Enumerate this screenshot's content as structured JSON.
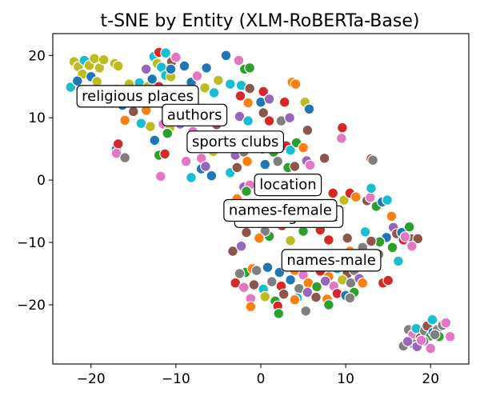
{
  "chart_data": {
    "type": "scatter",
    "title": "t-SNE by Entity (XLM-RoBERTa-Base)",
    "xlabel": "",
    "ylabel": "",
    "xlim": [
      -24.5,
      24.5
    ],
    "ylim": [
      -29.5,
      23.5
    ],
    "x_ticks": [
      -20,
      -10,
      0,
      10,
      20
    ],
    "y_ticks": [
      20,
      10,
      0,
      -10,
      -20
    ],
    "grid": false,
    "legend": "none",
    "colors": [
      "#1f77b4",
      "#ff7f0e",
      "#2ca02c",
      "#d62728",
      "#9467bd",
      "#8c564b",
      "#e377c2",
      "#7f7f7f",
      "#bcbd22",
      "#17becf"
    ],
    "cluster_labels": [
      {
        "text": "religious places",
        "x": -14.5,
        "y": 13.5
      },
      {
        "text": "authors",
        "x": -7.8,
        "y": 10.5
      },
      {
        "text": "sports clubs",
        "x": -3.0,
        "y": 6.2
      },
      {
        "text": "location",
        "x": 3.2,
        "y": -0.7
      },
      {
        "text": "clothing-male",
        "x": 3.3,
        "y": -5.8
      },
      {
        "text": "names-female",
        "x": 2.3,
        "y": -4.8
      },
      {
        "text": "names-male",
        "x": 8.3,
        "y": -12.8
      }
    ],
    "points": [
      {
        "x": -22.0,
        "y": 19.0,
        "c": 8
      },
      {
        "x": -21.5,
        "y": 18.2,
        "c": 8
      },
      {
        "x": -20.8,
        "y": 19.2,
        "c": 9
      },
      {
        "x": -20.2,
        "y": 18.4,
        "c": 8
      },
      {
        "x": -19.6,
        "y": 19.5,
        "c": 8
      },
      {
        "x": -19.0,
        "y": 18.0,
        "c": 8
      },
      {
        "x": -18.5,
        "y": 19.3,
        "c": 8
      },
      {
        "x": -17.2,
        "y": 18.7,
        "c": 8
      },
      {
        "x": -16.8,
        "y": 18.3,
        "c": 8
      },
      {
        "x": -21.0,
        "y": 17.0,
        "c": 8
      },
      {
        "x": -20.0,
        "y": 16.6,
        "c": 0
      },
      {
        "x": -22.4,
        "y": 14.9,
        "c": 9
      },
      {
        "x": -21.6,
        "y": 15.9,
        "c": 0
      },
      {
        "x": -19.3,
        "y": 15.8,
        "c": 8
      },
      {
        "x": -17.0,
        "y": 14.6,
        "c": 6
      },
      {
        "x": -15.5,
        "y": 15.4,
        "c": 8
      },
      {
        "x": -14.3,
        "y": 15.6,
        "c": 9
      },
      {
        "x": -13.3,
        "y": 15.0,
        "c": 8
      },
      {
        "x": -13.5,
        "y": 17.8,
        "c": 4
      },
      {
        "x": -12.6,
        "y": 19.8,
        "c": 9
      },
      {
        "x": -12.0,
        "y": 20.5,
        "c": 3
      },
      {
        "x": -11.2,
        "y": 20.4,
        "c": 9
      },
      {
        "x": -10.5,
        "y": 19.0,
        "c": 5
      },
      {
        "x": -10.0,
        "y": 19.7,
        "c": 6
      },
      {
        "x": -12.2,
        "y": 18.7,
        "c": 8
      },
      {
        "x": -11.7,
        "y": 18.1,
        "c": 9
      },
      {
        "x": -11.2,
        "y": 16.8,
        "c": 9
      },
      {
        "x": -10.6,
        "y": 16.6,
        "c": 8
      },
      {
        "x": -12.8,
        "y": 16.2,
        "c": 0
      },
      {
        "x": -13.0,
        "y": 14.0,
        "c": 2
      },
      {
        "x": -12.0,
        "y": 15.0,
        "c": 3
      },
      {
        "x": -10.6,
        "y": 17.8,
        "c": 0
      },
      {
        "x": -9.0,
        "y": 18.3,
        "c": 0
      },
      {
        "x": -8.2,
        "y": 15.7,
        "c": 0
      },
      {
        "x": -7.5,
        "y": 16.7,
        "c": 6
      },
      {
        "x": -6.4,
        "y": 18.0,
        "c": 0
      },
      {
        "x": -5.0,
        "y": 16.0,
        "c": 8
      },
      {
        "x": -4.1,
        "y": 20.0,
        "c": 0
      },
      {
        "x": -2.6,
        "y": 19.2,
        "c": 6
      },
      {
        "x": -1.9,
        "y": 17.8,
        "c": 2
      },
      {
        "x": -1.3,
        "y": 18.0,
        "c": 2
      },
      {
        "x": -3.6,
        "y": 15.4,
        "c": 9
      },
      {
        "x": -2.3,
        "y": 15.2,
        "c": 9
      },
      {
        "x": -2.4,
        "y": 13.5,
        "c": 3
      },
      {
        "x": -1.3,
        "y": 14.7,
        "c": 5
      },
      {
        "x": 0.3,
        "y": 14.2,
        "c": 3
      },
      {
        "x": -1.5,
        "y": 12.4,
        "c": 1
      },
      {
        "x": 0.0,
        "y": 12.5,
        "c": 0
      },
      {
        "x": -5.5,
        "y": 14.0,
        "c": 9
      },
      {
        "x": -6.6,
        "y": 14.8,
        "c": 8
      },
      {
        "x": 1.0,
        "y": 13.0,
        "c": 4
      },
      {
        "x": 2.8,
        "y": 12.5,
        "c": 3
      },
      {
        "x": 3.7,
        "y": 15.7,
        "c": 1
      },
      {
        "x": 4.1,
        "y": 15.4,
        "c": 1
      },
      {
        "x": 5.2,
        "y": 12.5,
        "c": 8
      },
      {
        "x": 5.7,
        "y": 11.4,
        "c": 0
      },
      {
        "x": 0.3,
        "y": 10.8,
        "c": 5
      },
      {
        "x": -2.5,
        "y": 10.2,
        "c": 4
      },
      {
        "x": -1.5,
        "y": 9.5,
        "c": 9
      },
      {
        "x": 1.0,
        "y": 9.5,
        "c": 3
      },
      {
        "x": 2.4,
        "y": 9.5,
        "c": 7
      },
      {
        "x": 3.4,
        "y": 10.0,
        "c": 4
      },
      {
        "x": 5.5,
        "y": 8.0,
        "c": 5
      },
      {
        "x": 9.6,
        "y": 8.4,
        "c": 3
      },
      {
        "x": 9.5,
        "y": 6.7,
        "c": 6
      },
      {
        "x": -15.2,
        "y": 13.5,
        "c": 2
      },
      {
        "x": -16.3,
        "y": 12.0,
        "c": 0
      },
      {
        "x": -15.0,
        "y": 11.0,
        "c": 5
      },
      {
        "x": -16.0,
        "y": 9.6,
        "c": 1
      },
      {
        "x": -13.5,
        "y": 11.2,
        "c": 1
      },
      {
        "x": -14.1,
        "y": 9.1,
        "c": 9
      },
      {
        "x": -13.0,
        "y": 8.6,
        "c": 8
      },
      {
        "x": -11.5,
        "y": 9.0,
        "c": 6
      },
      {
        "x": -10.7,
        "y": 8.4,
        "c": 8
      },
      {
        "x": -9.5,
        "y": 9.0,
        "c": 4
      },
      {
        "x": -12.5,
        "y": 6.4,
        "c": 0
      },
      {
        "x": -11.0,
        "y": 7.5,
        "c": 2
      },
      {
        "x": -8.0,
        "y": 7.8,
        "c": 6
      },
      {
        "x": -5.2,
        "y": 8.9,
        "c": 5
      },
      {
        "x": -17.0,
        "y": 5.0,
        "c": 0
      },
      {
        "x": -16.8,
        "y": 5.8,
        "c": 3
      },
      {
        "x": -17.0,
        "y": 4.3,
        "c": 6
      },
      {
        "x": -16.0,
        "y": 3.6,
        "c": 7
      },
      {
        "x": -12.0,
        "y": 4.0,
        "c": 2
      },
      {
        "x": -11.3,
        "y": 4.2,
        "c": 3
      },
      {
        "x": -8.8,
        "y": 3.0,
        "c": 6
      },
      {
        "x": -7.0,
        "y": 3.5,
        "c": 6
      },
      {
        "x": -5.6,
        "y": 4.6,
        "c": 8
      },
      {
        "x": -4.5,
        "y": 6.5,
        "c": 5
      },
      {
        "x": -3.0,
        "y": 4.0,
        "c": 4
      },
      {
        "x": -2.0,
        "y": 4.5,
        "c": 7
      },
      {
        "x": -1.0,
        "y": 5.5,
        "c": 3
      },
      {
        "x": 0.2,
        "y": 5.0,
        "c": 3
      },
      {
        "x": 1.5,
        "y": 4.5,
        "c": 2
      },
      {
        "x": 3.0,
        "y": 5.5,
        "c": 3
      },
      {
        "x": 3.5,
        "y": 4.8,
        "c": 9
      },
      {
        "x": 4.2,
        "y": 6.0,
        "c": 2
      },
      {
        "x": 5.0,
        "y": 5.2,
        "c": 1
      },
      {
        "x": 5.4,
        "y": 3.1,
        "c": 4
      },
      {
        "x": 5.8,
        "y": 2.4,
        "c": 6
      },
      {
        "x": 7.5,
        "y": 3.5,
        "c": 5
      },
      {
        "x": -8.2,
        "y": 0.4,
        "c": 9
      },
      {
        "x": -7.0,
        "y": 1.8,
        "c": 0
      },
      {
        "x": -6.5,
        "y": 2.2,
        "c": 4
      },
      {
        "x": -5.8,
        "y": 0.7,
        "c": 0
      },
      {
        "x": -11.8,
        "y": 0.6,
        "c": 6
      },
      {
        "x": -3.6,
        "y": 1.2,
        "c": 9
      },
      {
        "x": -2.8,
        "y": 2.0,
        "c": 5
      },
      {
        "x": -1.6,
        "y": 3.0,
        "c": 1
      },
      {
        "x": 0.5,
        "y": 2.5,
        "c": 0
      },
      {
        "x": 2.0,
        "y": 3.0,
        "c": 7
      },
      {
        "x": 3.2,
        "y": 2.0,
        "c": 2
      },
      {
        "x": 4.0,
        "y": 2.2,
        "c": 5
      },
      {
        "x": 13.0,
        "y": 3.4,
        "c": 3
      },
      {
        "x": 13.2,
        "y": 3.2,
        "c": 7
      },
      {
        "x": -2.0,
        "y": -1.1,
        "c": 4
      },
      {
        "x": -1.3,
        "y": -0.8,
        "c": 6
      },
      {
        "x": -1.7,
        "y": -1.8,
        "c": 2
      },
      {
        "x": -2.8,
        "y": -3.0,
        "c": 1
      },
      {
        "x": -2.2,
        "y": -4.3,
        "c": 7
      },
      {
        "x": 8.5,
        "y": -2.1,
        "c": 3
      },
      {
        "x": 9.8,
        "y": -3.2,
        "c": 8
      },
      {
        "x": 10.5,
        "y": -2.1,
        "c": 3
      },
      {
        "x": 11.2,
        "y": -2.7,
        "c": 1
      },
      {
        "x": 12.5,
        "y": -3.3,
        "c": 5
      },
      {
        "x": 12.9,
        "y": -2.8,
        "c": 6
      },
      {
        "x": 13.0,
        "y": -1.3,
        "c": 9
      },
      {
        "x": 13.6,
        "y": -4.2,
        "c": 2
      },
      {
        "x": 14.3,
        "y": -3.5,
        "c": 0
      },
      {
        "x": 14.9,
        "y": -3.2,
        "c": 9
      },
      {
        "x": 15.4,
        "y": -5.8,
        "c": 1
      },
      {
        "x": 15.6,
        "y": -7.6,
        "c": 4
      },
      {
        "x": 16.0,
        "y": -8.6,
        "c": 5
      },
      {
        "x": 16.6,
        "y": -8.4,
        "c": 0
      },
      {
        "x": 17.5,
        "y": -7.5,
        "c": 2
      },
      {
        "x": 17.7,
        "y": -9.4,
        "c": 5
      },
      {
        "x": 18.5,
        "y": -9.4,
        "c": 5
      },
      {
        "x": 14.8,
        "y": -9.2,
        "c": 0
      },
      {
        "x": 14.0,
        "y": -9.9,
        "c": 2
      },
      {
        "x": 15.5,
        "y": -10.8,
        "c": 2
      },
      {
        "x": 16.8,
        "y": -9.6,
        "c": 3
      },
      {
        "x": 17.0,
        "y": -9.1,
        "c": 6
      },
      {
        "x": 17.8,
        "y": -10.6,
        "c": 6
      },
      {
        "x": 16.2,
        "y": -13.0,
        "c": 9
      },
      {
        "x": 12.0,
        "y": -10.8,
        "c": 7
      },
      {
        "x": 13.0,
        "y": -9.8,
        "c": 5
      },
      {
        "x": 13.9,
        "y": -11.9,
        "c": 7
      },
      {
        "x": 11.5,
        "y": -12.0,
        "c": 2
      },
      {
        "x": 10.5,
        "y": -11.4,
        "c": 1
      },
      {
        "x": 12.3,
        "y": -8.3,
        "c": 9
      },
      {
        "x": 10.2,
        "y": -9.3,
        "c": 5
      },
      {
        "x": 8.0,
        "y": -9.6,
        "c": 3
      },
      {
        "x": 7.0,
        "y": -8.0,
        "c": 3
      },
      {
        "x": 5.0,
        "y": -8.2,
        "c": 2
      },
      {
        "x": 3.5,
        "y": -9.7,
        "c": 8
      },
      {
        "x": 2.5,
        "y": -7.3,
        "c": 3
      },
      {
        "x": 1.0,
        "y": -9.0,
        "c": 2
      },
      {
        "x": 0.5,
        "y": -8.2,
        "c": 7
      },
      {
        "x": -0.2,
        "y": -9.3,
        "c": 1
      },
      {
        "x": -1.7,
        "y": -8.4,
        "c": 5
      },
      {
        "x": -3.3,
        "y": -11.4,
        "c": 5
      },
      {
        "x": -2.3,
        "y": -10.6,
        "c": 4
      },
      {
        "x": -1.8,
        "y": -14.8,
        "c": 2
      },
      {
        "x": -1.0,
        "y": -14.2,
        "c": 1
      },
      {
        "x": -2.5,
        "y": -15.0,
        "c": 7
      },
      {
        "x": -0.5,
        "y": -14.5,
        "c": 7
      },
      {
        "x": 0.8,
        "y": -14.0,
        "c": 0
      },
      {
        "x": 2.2,
        "y": -14.8,
        "c": 0
      },
      {
        "x": 3.0,
        "y": -13.9,
        "c": 4
      },
      {
        "x": 4.0,
        "y": -14.5,
        "c": 1
      },
      {
        "x": 5.0,
        "y": -15.2,
        "c": 6
      },
      {
        "x": 6.0,
        "y": -14.0,
        "c": 2
      },
      {
        "x": 7.0,
        "y": -14.6,
        "c": 3
      },
      {
        "x": 8.0,
        "y": -15.5,
        "c": 1
      },
      {
        "x": 9.0,
        "y": -14.2,
        "c": 9
      },
      {
        "x": 10.2,
        "y": -15.0,
        "c": 5
      },
      {
        "x": 11.0,
        "y": -14.5,
        "c": 7
      },
      {
        "x": -3.0,
        "y": -16.5,
        "c": 3
      },
      {
        "x": -2.0,
        "y": -17.2,
        "c": 6
      },
      {
        "x": -0.8,
        "y": -16.8,
        "c": 5
      },
      {
        "x": 0.3,
        "y": -17.5,
        "c": 9
      },
      {
        "x": 1.3,
        "y": -16.3,
        "c": 7
      },
      {
        "x": 2.4,
        "y": -17.0,
        "c": 3
      },
      {
        "x": 3.5,
        "y": -16.0,
        "c": 0
      },
      {
        "x": 4.5,
        "y": -17.4,
        "c": 7
      },
      {
        "x": 5.6,
        "y": -16.5,
        "c": 1
      },
      {
        "x": 6.6,
        "y": -17.1,
        "c": 2
      },
      {
        "x": 7.6,
        "y": -16.2,
        "c": 4
      },
      {
        "x": 8.6,
        "y": -17.0,
        "c": 6
      },
      {
        "x": 9.6,
        "y": -16.0,
        "c": 8
      },
      {
        "x": 10.6,
        "y": -16.5,
        "c": 7
      },
      {
        "x": 11.6,
        "y": -15.8,
        "c": 4
      },
      {
        "x": 14.4,
        "y": -16.5,
        "c": 3
      },
      {
        "x": 15.0,
        "y": -16.1,
        "c": 3
      },
      {
        "x": -1.2,
        "y": -19.0,
        "c": 6
      },
      {
        "x": 0.5,
        "y": -18.7,
        "c": 8
      },
      {
        "x": 1.7,
        "y": -19.4,
        "c": 2
      },
      {
        "x": 2.7,
        "y": -18.3,
        "c": 5
      },
      {
        "x": 4.3,
        "y": -18.9,
        "c": 9
      },
      {
        "x": 5.5,
        "y": -18.0,
        "c": 4
      },
      {
        "x": 6.5,
        "y": -18.8,
        "c": 5
      },
      {
        "x": 7.8,
        "y": -19.1,
        "c": 1
      },
      {
        "x": 9.0,
        "y": -18.2,
        "c": 3
      },
      {
        "x": 10.0,
        "y": -18.5,
        "c": 0
      },
      {
        "x": 11.0,
        "y": -18.0,
        "c": 2
      },
      {
        "x": -1.2,
        "y": -20.3,
        "c": 1
      },
      {
        "x": 2.0,
        "y": -20.2,
        "c": 3
      },
      {
        "x": 2.1,
        "y": -21.4,
        "c": 2
      },
      {
        "x": 4.0,
        "y": -19.2,
        "c": 1
      },
      {
        "x": 5.3,
        "y": -21.0,
        "c": 7
      },
      {
        "x": 8.0,
        "y": -20.0,
        "c": 2
      },
      {
        "x": 10.5,
        "y": -18.9,
        "c": 7
      },
      {
        "x": 12.0,
        "y": -16.5,
        "c": 1
      },
      {
        "x": 17.4,
        "y": -24.0,
        "c": 7
      },
      {
        "x": 17.9,
        "y": -24.8,
        "c": 6
      },
      {
        "x": 18.3,
        "y": -23.8,
        "c": 9
      },
      {
        "x": 18.8,
        "y": -25.3,
        "c": 5
      },
      {
        "x": 19.3,
        "y": -24.2,
        "c": 7
      },
      {
        "x": 19.6,
        "y": -23.4,
        "c": 5
      },
      {
        "x": 20.0,
        "y": -25.0,
        "c": 2
      },
      {
        "x": 20.3,
        "y": -24.4,
        "c": 0
      },
      {
        "x": 20.2,
        "y": -22.4,
        "c": 9
      },
      {
        "x": 20.8,
        "y": -24.0,
        "c": 7
      },
      {
        "x": 21.0,
        "y": -25.1,
        "c": 2
      },
      {
        "x": 21.4,
        "y": -23.3,
        "c": 7
      },
      {
        "x": 21.8,
        "y": -22.9,
        "c": 6
      },
      {
        "x": 22.3,
        "y": -25.1,
        "c": 6
      },
      {
        "x": 20.5,
        "y": -24.8,
        "c": 7
      },
      {
        "x": 19.2,
        "y": -25.8,
        "c": 4
      },
      {
        "x": 18.0,
        "y": -26.3,
        "c": 7
      },
      {
        "x": 18.4,
        "y": -26.7,
        "c": 4
      },
      {
        "x": 16.8,
        "y": -26.6,
        "c": 7
      },
      {
        "x": 17.3,
        "y": -25.9,
        "c": 4
      },
      {
        "x": 20.0,
        "y": -27.0,
        "c": 6
      },
      {
        "x": 18.9,
        "y": -25.7,
        "c": 6
      }
    ]
  }
}
